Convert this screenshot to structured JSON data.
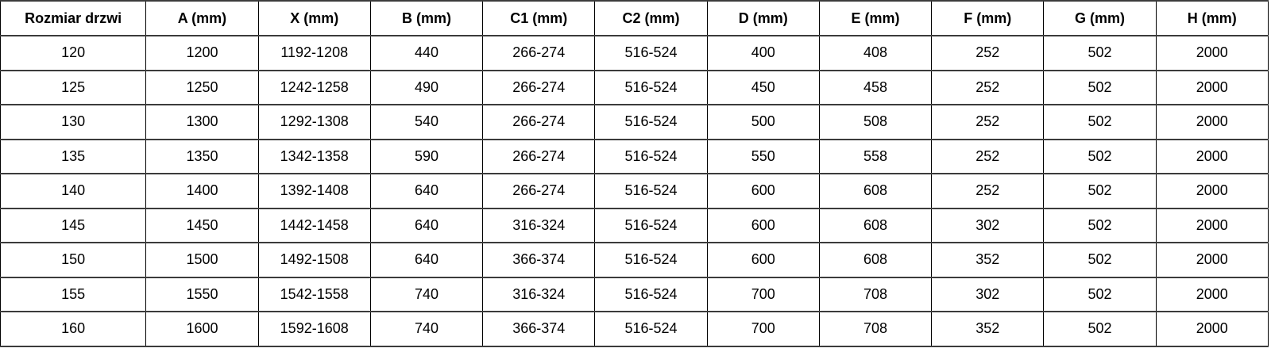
{
  "chart_data": {
    "type": "table",
    "title": "",
    "columns": [
      "Rozmiar drzwi",
      "A (mm)",
      "X (mm)",
      "B (mm)",
      "C1 (mm)",
      "C2 (mm)",
      "D (mm)",
      "E (mm)",
      "F (mm)",
      "G (mm)",
      "H (mm)"
    ],
    "rows": [
      [
        "120",
        "1200",
        "1192-1208",
        "440",
        "266-274",
        "516-524",
        "400",
        "408",
        "252",
        "502",
        "2000"
      ],
      [
        "125",
        "1250",
        "1242-1258",
        "490",
        "266-274",
        "516-524",
        "450",
        "458",
        "252",
        "502",
        "2000"
      ],
      [
        "130",
        "1300",
        "1292-1308",
        "540",
        "266-274",
        "516-524",
        "500",
        "508",
        "252",
        "502",
        "2000"
      ],
      [
        "135",
        "1350",
        "1342-1358",
        "590",
        "266-274",
        "516-524",
        "550",
        "558",
        "252",
        "502",
        "2000"
      ],
      [
        "140",
        "1400",
        "1392-1408",
        "640",
        "266-274",
        "516-524",
        "600",
        "608",
        "252",
        "502",
        "2000"
      ],
      [
        "145",
        "1450",
        "1442-1458",
        "640",
        "316-324",
        "516-524",
        "600",
        "608",
        "302",
        "502",
        "2000"
      ],
      [
        "150",
        "1500",
        "1492-1508",
        "640",
        "366-374",
        "516-524",
        "600",
        "608",
        "352",
        "502",
        "2000"
      ],
      [
        "155",
        "1550",
        "1542-1558",
        "740",
        "316-324",
        "516-524",
        "700",
        "708",
        "302",
        "502",
        "2000"
      ],
      [
        "160",
        "1600",
        "1592-1608",
        "740",
        "366-374",
        "516-524",
        "700",
        "708",
        "352",
        "502",
        "2000"
      ]
    ],
    "layout": {
      "grid": true,
      "header_position": "top",
      "text_align": "center"
    },
    "colors": {
      "background": "#ffffff",
      "text": "#000000",
      "vertical_rule": "#000000",
      "horizontal_rule": "#3b3b3b"
    }
  }
}
